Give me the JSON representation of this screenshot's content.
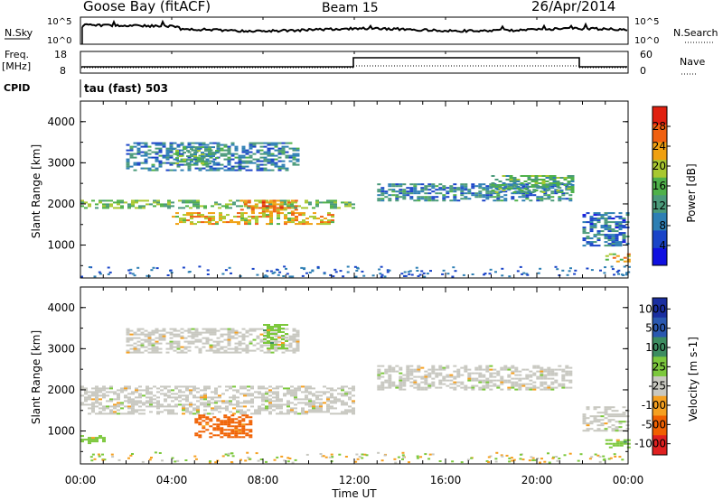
{
  "header": {
    "station": "Goose Bay (fitACF)",
    "beam": "Beam 15",
    "date": "26/Apr/2014"
  },
  "status_panels": {
    "nsky_label": "N.Sky",
    "nsky_ticks": [
      "10^5",
      "10^0"
    ],
    "nsearch_label": "N.Search",
    "nsearch_ticks": [
      "10^5",
      "10^0"
    ],
    "freq_label_line1": "Freq.",
    "freq_label_line2": "[MHz]",
    "freq_ticks": [
      "18",
      "8"
    ],
    "nave_label": "Nave",
    "nave_ticks": [
      "60",
      "0"
    ],
    "cpid_label": "CPID",
    "cpid_value": "tau (fast) 503"
  },
  "colors": {
    "power": [
      "#1010e0",
      "#1a44c8",
      "#2e7fb4",
      "#4a9a7a",
      "#4fb14a",
      "#a8c830",
      "#f0a010",
      "#f06010",
      "#e02010"
    ],
    "velocity": [
      "#e02020",
      "#f06000",
      "#f5a020",
      "#c8c8c0",
      "#7cc83c",
      "#3c8c60",
      "#2a58b0",
      "#1a2ea0"
    ]
  },
  "chart_data": [
    {
      "type": "heatmap",
      "title": "Power",
      "ylabel": "Slant Range [km]",
      "colorbar_label": "Power [dB]",
      "colorbar_ticks": [
        "28",
        "24",
        "20",
        "16",
        "12",
        "8",
        "4"
      ],
      "colorbar_range": [
        0,
        32
      ],
      "yticks": [
        "1000",
        "2000",
        "3000",
        "4000"
      ],
      "ylim": [
        200,
        4500
      ],
      "xlim": [
        "00:00",
        "24:00"
      ],
      "echo_bands": [
        {
          "t_start": 0.0,
          "t_end": 12.0,
          "range_start": 1900,
          "range_end": 2100,
          "power": 16
        },
        {
          "t_start": 4.0,
          "t_end": 11.0,
          "range_start": 1500,
          "range_end": 1800,
          "power": 22
        },
        {
          "t_start": 7.0,
          "t_end": 9.5,
          "range_start": 1800,
          "range_end": 2100,
          "power": 24
        },
        {
          "t_start": 2.0,
          "t_end": 9.5,
          "range_start": 2800,
          "range_end": 3500,
          "power": 10
        },
        {
          "t_start": 4.0,
          "t_end": 6.0,
          "range_start": 3000,
          "range_end": 3400,
          "power": 14
        },
        {
          "t_start": 13.0,
          "t_end": 21.5,
          "range_start": 2100,
          "range_end": 2500,
          "power": 10
        },
        {
          "t_start": 18.0,
          "t_end": 21.5,
          "range_start": 2300,
          "range_end": 2700,
          "power": 14
        },
        {
          "t_start": 22.0,
          "t_end": 24.0,
          "range_start": 1000,
          "range_end": 1800,
          "power": 8
        },
        {
          "t_start": 23.0,
          "t_end": 24.0,
          "range_start": 600,
          "range_end": 800,
          "power": 22
        }
      ]
    },
    {
      "type": "heatmap",
      "title": "Velocity",
      "ylabel": "Slant Range [km]",
      "xlabel": "Time UT",
      "colorbar_label": "Velocity [m s-1]",
      "colorbar_ticks": [
        "1000",
        "500",
        "100",
        "25",
        "-25",
        "-100",
        "-500",
        "-1000"
      ],
      "yticks": [
        "1000",
        "2000",
        "3000",
        "4000"
      ],
      "xticks": [
        "00:00",
        "04:00",
        "08:00",
        "12:00",
        "16:00",
        "20:00",
        "00:00"
      ],
      "ylim": [
        200,
        4500
      ],
      "xlim": [
        "00:00",
        "24:00"
      ],
      "echo_bands": [
        {
          "t_start": 0.0,
          "t_end": 12.0,
          "range_start": 1400,
          "range_end": 2100,
          "velocity": 0
        },
        {
          "t_start": 2.0,
          "t_end": 9.5,
          "range_start": 2900,
          "range_end": 3500,
          "velocity": 0
        },
        {
          "t_start": 5.0,
          "t_end": 7.5,
          "range_start": 850,
          "range_end": 1400,
          "velocity": -300
        },
        {
          "t_start": 0.0,
          "t_end": 1.0,
          "range_start": 700,
          "range_end": 900,
          "velocity": 150
        },
        {
          "t_start": 8.0,
          "t_end": 9.0,
          "range_start": 3000,
          "range_end": 3600,
          "velocity": 60
        },
        {
          "t_start": 13.0,
          "t_end": 21.5,
          "range_start": 2000,
          "range_end": 2600,
          "velocity": 0
        },
        {
          "t_start": 22.0,
          "t_end": 24.0,
          "range_start": 1000,
          "range_end": 1600,
          "velocity": 0
        },
        {
          "t_start": 23.0,
          "t_end": 24.0,
          "range_start": 600,
          "range_end": 800,
          "velocity": 150
        }
      ]
    }
  ]
}
